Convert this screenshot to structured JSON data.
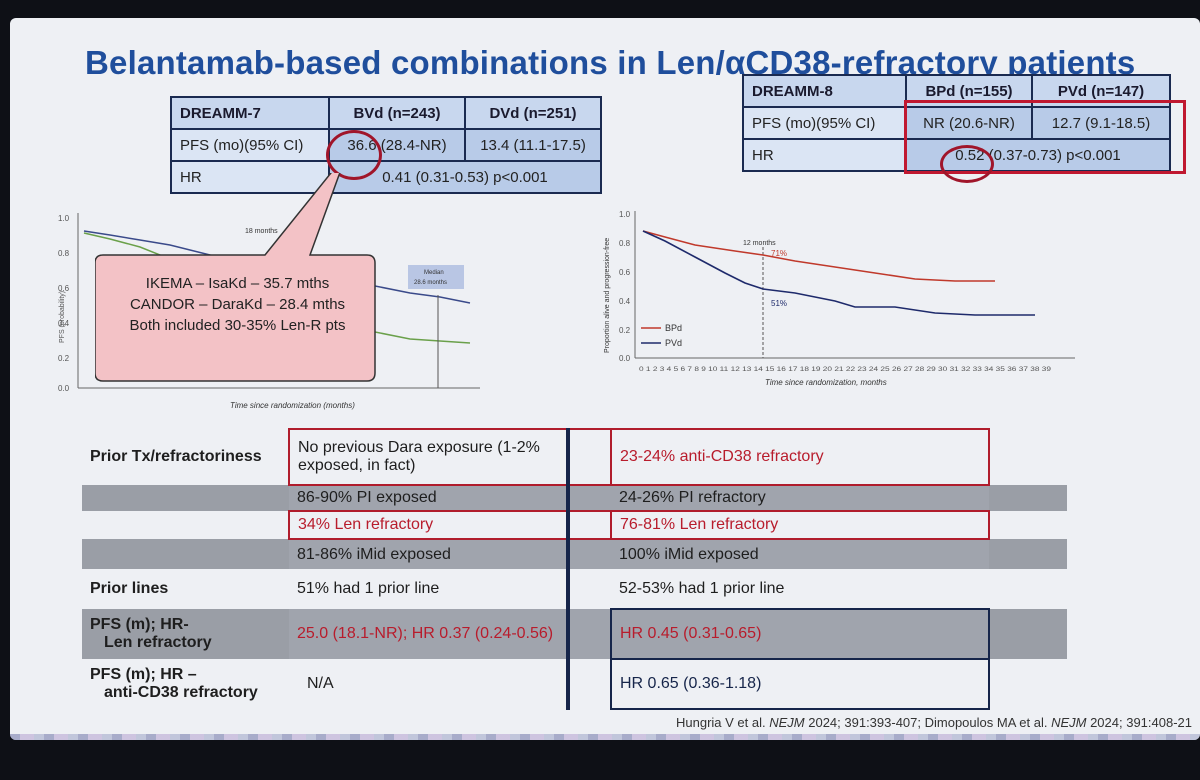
{
  "slide": {
    "title": "Belantamab-based combinations in Len/αCD38-refractory patients"
  },
  "dreamm7": {
    "header": [
      "DREAMM-7",
      "BVd (n=243)",
      "DVd (n=251)"
    ],
    "pfs_label": "PFS (mo)(95% CI)",
    "pfs_bvd_value": "36.6",
    "pfs_bvd_ci": "(28.4-NR)",
    "pfs_dvd": "13.4 (11.1-17.5)",
    "hr_label": "HR",
    "hr_value": "0.41 (0.31-0.53) p<0.001"
  },
  "dreamm8": {
    "header": [
      "DREAMM-8",
      "BPd (n=155)",
      "PVd (n=147)"
    ],
    "pfs_label": "PFS (mo)(95% CI)",
    "pfs_bpd": "NR (20.6-NR)",
    "pfs_pvd": "12.7 (9.1-18.5)",
    "hr_label": "HR",
    "hr_value_ringed": "0.52",
    "hr_value_rest": "(0.37-0.73) p<0.001"
  },
  "callout": {
    "lines": [
      "IKEMA – IsaKd – 35.7 mths",
      "CANDOR – DaraKd – 28.4 mths",
      "Both included 30-35% Len-R pts"
    ]
  },
  "km_left": {
    "xlabel": "Time since randomization (months)",
    "ylabel": "PFS (probability)",
    "annotation_top": "18 months",
    "median_label": "Median",
    "median_value": "28.6 months",
    "yticks": [
      "1.0",
      "0.8",
      "0.6",
      "0.4",
      "0.2",
      "0.0"
    ]
  },
  "km_right": {
    "xlabel": "Time since randomization, months",
    "ylabel": "Proportion alive and progression-free",
    "annotation_top": "12 months",
    "bpd_pct": "71%",
    "pvd_pct": "51%",
    "legend_bpd": "BPd",
    "legend_pvd": "PVd",
    "yticks": [
      "1.0",
      "0.8",
      "0.6",
      "0.4",
      "0.2",
      "0.0"
    ],
    "xticks": "0 1 2 3 4 5 6 7 8 9 10 11 12 13 14 15 16 17 18 19 20 21 22 23 24 25 26 27 28 29 30 31 32 33 34 35 36 37 38 39"
  },
  "comparison": {
    "prior_tx_label": "Prior Tx/refractoriness",
    "dara_line1": "No previous Dara exposure (1-2%",
    "dara_line2": "exposed, in fact)",
    "cd38_refractory": "23-24% anti-CD38 refractory",
    "pi_exposed": "86-90% PI exposed",
    "pi_refractory": "24-26% PI refractory",
    "len_refractory_7": "34% Len refractory",
    "len_refractory_8": "76-81% Len refractory",
    "imid_7": "81-86% iMid exposed",
    "imid_8": "100% iMid exposed",
    "prior_lines_label": "Prior lines",
    "prior_lines_7": "51% had 1 prior line",
    "prior_lines_8": "52-53% had 1 prior line",
    "pfs_len_label_1": "PFS (m); HR-",
    "pfs_len_label_2": "Len refractory",
    "pfs_len_7": "25.0 (18.1-NR); HR 0.37 (0.24-0.56)",
    "pfs_len_8": "HR 0.45 (0.31-0.65)",
    "pfs_cd38_label_1": "PFS (m); HR –",
    "pfs_cd38_label_2": "anti-CD38 refractory",
    "pfs_cd38_7": "N/A",
    "pfs_cd38_8": "HR 0.65 (0.36-1.18)"
  },
  "reference": {
    "part1": "Hungria V et al. ",
    "journal1": "NEJM",
    "part2": " 2024; 391:393-407; Dimopoulos MA et al. ",
    "journal2": "NEJM",
    "part3": " 2024; 391:408-21"
  },
  "colors": {
    "title_blue": "#1f4e9c",
    "highlight_red": "#b01818",
    "bpd_curve": "#c0392b",
    "pvd_curve": "#1e2a6b"
  }
}
